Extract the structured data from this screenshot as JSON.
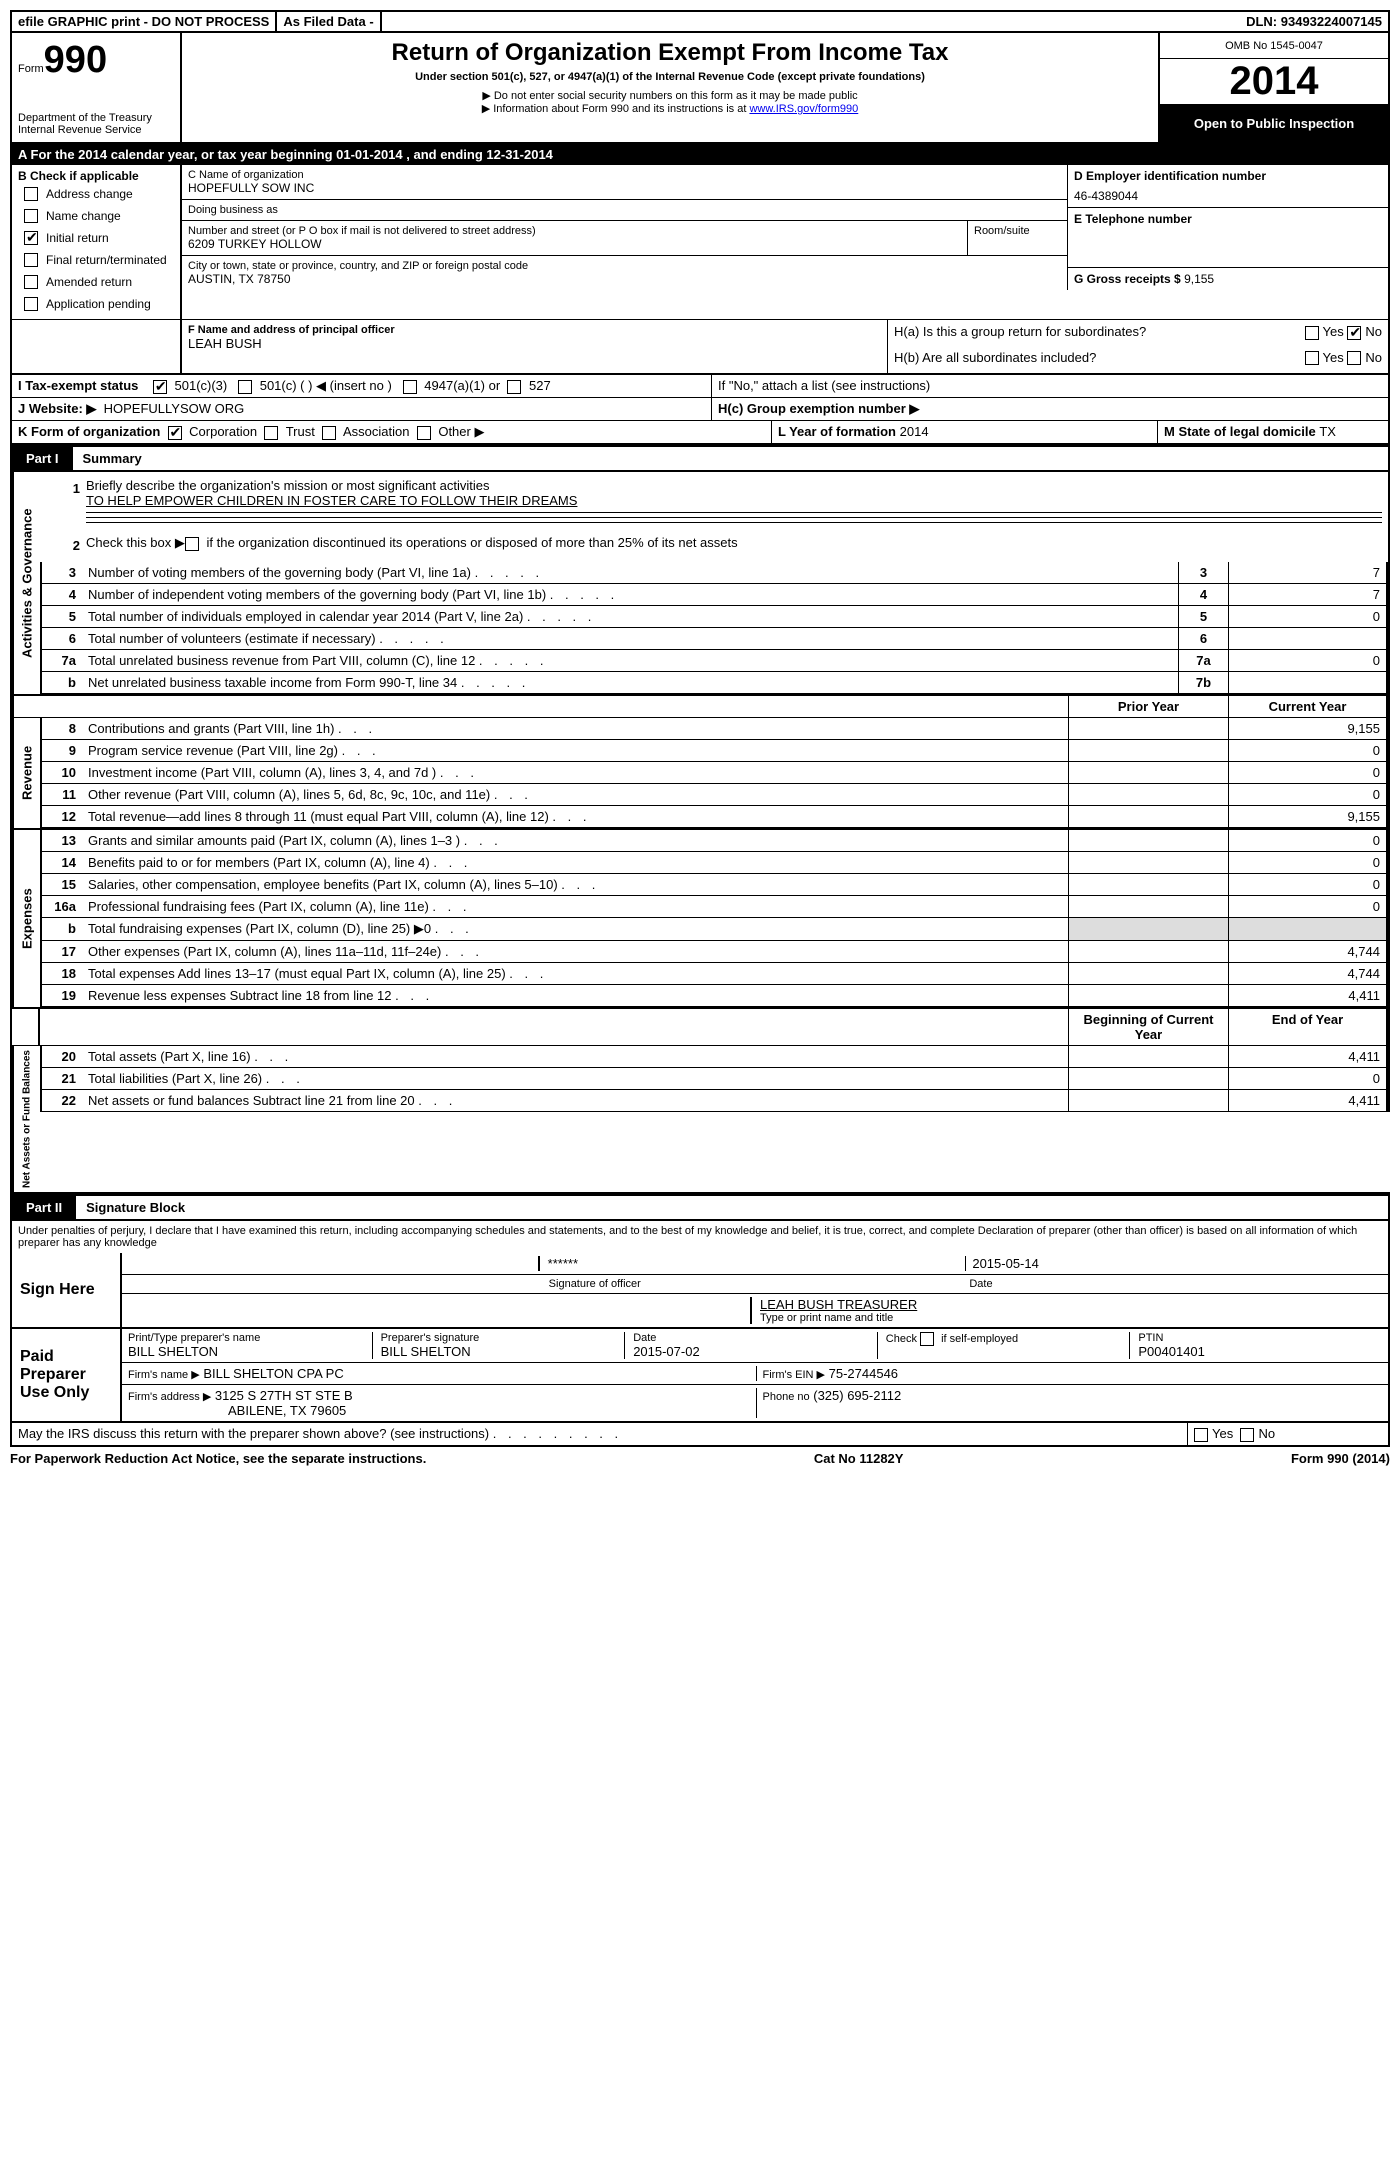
{
  "topbar": {
    "efile": "efile GRAPHIC print - DO NOT PROCESS",
    "asfiled": "As Filed Data -",
    "dln_label": "DLN:",
    "dln": "93493224007145"
  },
  "header": {
    "form_label": "Form",
    "form_num": "990",
    "dept": "Department of the Treasury",
    "irs": "Internal Revenue Service",
    "title": "Return of Organization Exempt From Income Tax",
    "subtitle": "Under section 501(c), 527, or 4947(a)(1) of the Internal Revenue Code (except private foundations)",
    "note1": "▶ Do not enter social security numbers on this form as it may be made public",
    "note2_prefix": "▶ Information about Form 990 and its instructions is at ",
    "note2_link": "www.IRS.gov/form990",
    "omb": "OMB No 1545-0047",
    "year": "2014",
    "open": "Open to Public Inspection"
  },
  "sectionA": {
    "label": "A For the 2014 calendar year, or tax year beginning 01-01-2014    , and ending 12-31-2014"
  },
  "sectionB": {
    "label": "B Check if applicable",
    "items": [
      "Address change",
      "Name change",
      "Initial return",
      "Final return/terminated",
      "Amended return",
      "Application pending"
    ],
    "checked_index": 2
  },
  "sectionC": {
    "label": "C Name of organization",
    "name": "HOPEFULLY SOW INC",
    "dba_label": "Doing business as",
    "dba": "",
    "street_label": "Number and street (or P O box if mail is not delivered to street address)",
    "street": "6209 TURKEY HOLLOW",
    "room_label": "Room/suite",
    "city_label": "City or town, state or province, country, and ZIP or foreign postal code",
    "city": "AUSTIN, TX  78750"
  },
  "sectionD": {
    "label": "D Employer identification number",
    "val": "46-4389044"
  },
  "sectionE": {
    "label": "E Telephone number",
    "val": ""
  },
  "sectionG": {
    "label": "G Gross receipts $",
    "val": "9,155"
  },
  "sectionF": {
    "label": "F   Name and address of principal officer",
    "name": "LEAH BUSH"
  },
  "sectionH": {
    "ha": "H(a)  Is this a group return for subordinates?",
    "hb": "H(b)  Are all subordinates included?",
    "hb_note": "If \"No,\" attach a list (see instructions)",
    "hc": "H(c)   Group exemption number ▶",
    "yes": "Yes",
    "no": "No",
    "ha_no_checked": true
  },
  "sectionI": {
    "label": "I  Tax-exempt status",
    "opt1": "501(c)(3)",
    "opt2": "501(c) (   ) ◀ (insert no )",
    "opt3": "4947(a)(1) or",
    "opt4": "527"
  },
  "sectionJ": {
    "label": "J  Website: ▶",
    "val": "HOPEFULLYSOW ORG"
  },
  "sectionK": {
    "label": "K Form of organization",
    "opts": [
      "Corporation",
      "Trust",
      "Association",
      "Other ▶"
    ]
  },
  "sectionL": {
    "label": "L Year of formation",
    "val": "2014"
  },
  "sectionM": {
    "label": "M State of legal domicile",
    "val": "TX"
  },
  "part1": {
    "label": "Part I",
    "title": "Summary"
  },
  "summary": {
    "line1_label": "Briefly describe the organization's mission or most significant activities",
    "line1_val": "TO HELP EMPOWER CHILDREN IN FOSTER CARE TO FOLLOW THEIR DREAMS",
    "line2": "Check this box ▶     if the organization discontinued its operations or disposed of more than 25% of its net assets",
    "rows_gov": [
      {
        "num": "3",
        "desc": "Number of voting members of the governing body (Part VI, line 1a)",
        "box": "3",
        "val": "7"
      },
      {
        "num": "4",
        "desc": "Number of independent voting members of the governing body (Part VI, line 1b)",
        "box": "4",
        "val": "7"
      },
      {
        "num": "5",
        "desc": "Total number of individuals employed in calendar year 2014 (Part V, line 2a)",
        "box": "5",
        "val": "0"
      },
      {
        "num": "6",
        "desc": "Total number of volunteers (estimate if necessary)",
        "box": "6",
        "val": ""
      },
      {
        "num": "7a",
        "desc": "Total unrelated business revenue from Part VIII, column (C), line 12",
        "box": "7a",
        "val": "0"
      },
      {
        "num": "b",
        "desc": "Net unrelated business taxable income from Form 990-T, line 34",
        "box": "7b",
        "val": ""
      }
    ],
    "prior_year": "Prior Year",
    "current_year": "Current Year",
    "rows_rev": [
      {
        "num": "8",
        "desc": "Contributions and grants (Part VIII, line 1h)",
        "prior": "",
        "curr": "9,155"
      },
      {
        "num": "9",
        "desc": "Program service revenue (Part VIII, line 2g)",
        "prior": "",
        "curr": "0"
      },
      {
        "num": "10",
        "desc": "Investment income (Part VIII, column (A), lines 3, 4, and 7d )",
        "prior": "",
        "curr": "0"
      },
      {
        "num": "11",
        "desc": "Other revenue (Part VIII, column (A), lines 5, 6d, 8c, 9c, 10c, and 11e)",
        "prior": "",
        "curr": "0"
      },
      {
        "num": "12",
        "desc": "Total revenue—add lines 8 through 11 (must equal Part VIII, column (A), line 12)",
        "prior": "",
        "curr": "9,155"
      }
    ],
    "rows_exp": [
      {
        "num": "13",
        "desc": "Grants and similar amounts paid (Part IX, column (A), lines 1–3 )",
        "prior": "",
        "curr": "0"
      },
      {
        "num": "14",
        "desc": "Benefits paid to or for members (Part IX, column (A), line 4)",
        "prior": "",
        "curr": "0"
      },
      {
        "num": "15",
        "desc": "Salaries, other compensation, employee benefits (Part IX, column (A), lines 5–10)",
        "prior": "",
        "curr": "0"
      },
      {
        "num": "16a",
        "desc": "Professional fundraising fees (Part IX, column (A), line 11e)",
        "prior": "",
        "curr": "0"
      },
      {
        "num": "b",
        "desc": "Total fundraising expenses (Part IX, column (D), line 25) ▶0",
        "prior": "shaded",
        "curr": "shaded"
      },
      {
        "num": "17",
        "desc": "Other expenses (Part IX, column (A), lines 11a–11d, 11f–24e)",
        "prior": "",
        "curr": "4,744"
      },
      {
        "num": "18",
        "desc": "Total expenses Add lines 13–17 (must equal Part IX, column (A), line 25)",
        "prior": "",
        "curr": "4,744"
      },
      {
        "num": "19",
        "desc": "Revenue less expenses Subtract line 18 from line 12",
        "prior": "",
        "curr": "4,411"
      }
    ],
    "begin_year": "Beginning of Current Year",
    "end_year": "End of Year",
    "rows_net": [
      {
        "num": "20",
        "desc": "Total assets (Part X, line 16)",
        "prior": "",
        "curr": "4,411"
      },
      {
        "num": "21",
        "desc": "Total liabilities (Part X, line 26)",
        "prior": "",
        "curr": "0"
      },
      {
        "num": "22",
        "desc": "Net assets or fund balances Subtract line 21 from line 20",
        "prior": "",
        "curr": "4,411"
      }
    ]
  },
  "vlabels": {
    "gov": "Activities & Governance",
    "rev": "Revenue",
    "exp": "Expenses",
    "net": "Net Assets or Fund Balances"
  },
  "part2": {
    "label": "Part II",
    "title": "Signature Block"
  },
  "declaration": "Under penalties of perjury, I declare that I have examined this return, including accompanying schedules and statements, and to the best of my knowledge and belief, it is true, correct, and complete Declaration of preparer (other than officer) is based on all information of which preparer has any knowledge",
  "sign": {
    "label": "Sign Here",
    "stars": "******",
    "sig_label": "Signature of officer",
    "date": "2015-05-14",
    "date_label": "Date",
    "name": "LEAH BUSH TREASURER",
    "name_label": "Type or print name and title"
  },
  "preparer": {
    "label": "Paid Preparer Use Only",
    "print_label": "Print/Type preparer's name",
    "print_name": "BILL SHELTON",
    "sig_label": "Preparer's signature",
    "sig_name": "BILL SHELTON",
    "date_label": "Date",
    "date": "2015-07-02",
    "check_label": "Check      if self-employed",
    "ptin_label": "PTIN",
    "ptin": "P00401401",
    "firm_name_label": "Firm's name    ▶",
    "firm_name": "BILL SHELTON CPA PC",
    "firm_ein_label": "Firm's EIN ▶",
    "firm_ein": "75-2744546",
    "firm_addr_label": "Firm's address ▶",
    "firm_addr1": "3125 S 27TH ST STE B",
    "firm_addr2": "ABILENE, TX  79605",
    "phone_label": "Phone no",
    "phone": "(325) 695-2112"
  },
  "discuss": {
    "text": "May the IRS discuss this return with the preparer shown above? (see instructions)",
    "yes": "Yes",
    "no": "No"
  },
  "footer": {
    "left": "For Paperwork Reduction Act Notice, see the separate instructions.",
    "mid": "Cat No 11282Y",
    "right": "Form 990 (2014)"
  }
}
